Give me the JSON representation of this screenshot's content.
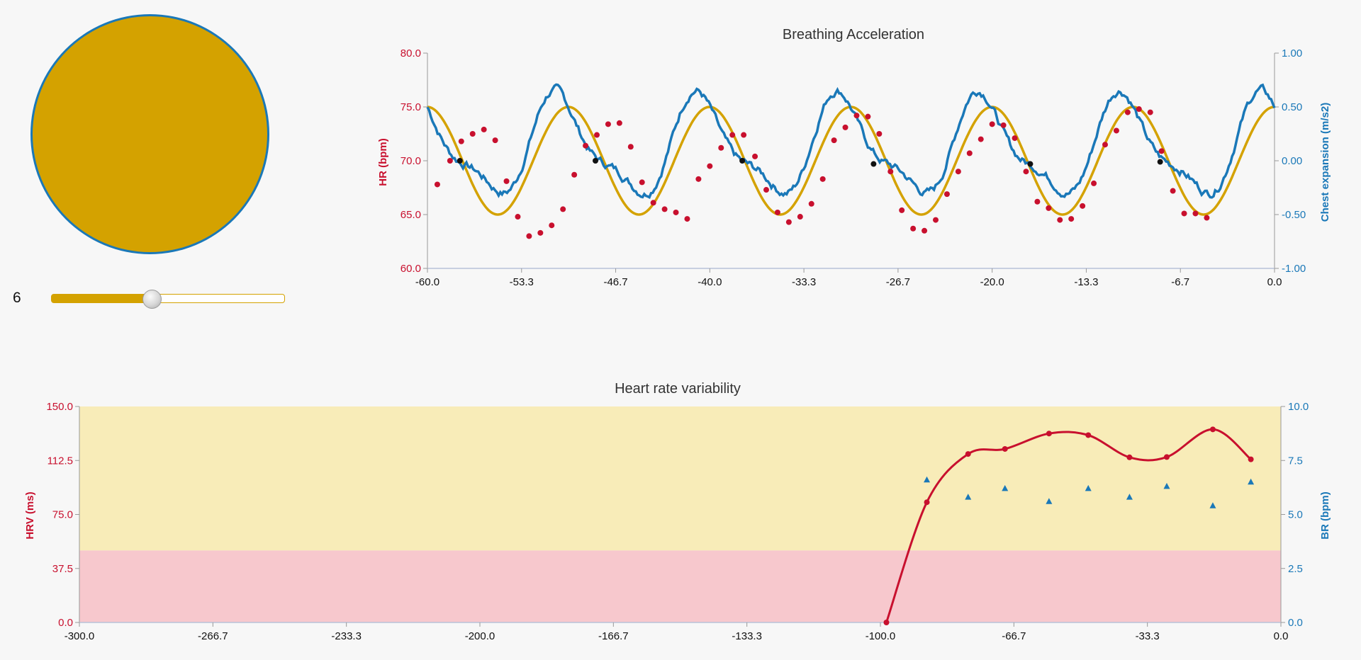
{
  "colors": {
    "gold": "#d4a200",
    "blue": "#1a78b8",
    "red": "#c8102e",
    "black": "#111111",
    "band_yellow": "#f8ecb8",
    "band_pink": "#f7c8cd"
  },
  "pacer": {
    "slider_value": "6",
    "slider_fraction": 0.43
  },
  "chart_data": [
    {
      "type": "line",
      "title": "Breathing Acceleration",
      "ylabel": "HR (bpm)",
      "y2label": "Chest expansion (m/s2)",
      "xlim": [
        -60,
        0
      ],
      "ylim": [
        60,
        80
      ],
      "y2lim": [
        -1,
        1
      ],
      "x_ticks": [
        "-60.0",
        "-53.3",
        "-46.7",
        "-40.0",
        "-33.3",
        "-26.7",
        "-20.0",
        "-13.3",
        "-6.7",
        "0.0"
      ],
      "y_ticks": [
        "60.0",
        "65.0",
        "70.0",
        "75.0",
        "80.0"
      ],
      "y2_ticks": [
        "-1.00",
        "-0.50",
        "0.00",
        "0.50",
        "1.00"
      ],
      "hr_points": [
        [
          -59.3,
          67.8
        ],
        [
          -58.4,
          70.0
        ],
        [
          -57.6,
          71.8
        ],
        [
          -56.8,
          72.5
        ],
        [
          -56.0,
          72.9
        ],
        [
          -55.2,
          71.9
        ],
        [
          -54.4,
          68.1
        ],
        [
          -53.6,
          64.8
        ],
        [
          -52.8,
          63.0
        ],
        [
          -52.0,
          63.3
        ],
        [
          -51.2,
          64.0
        ],
        [
          -50.4,
          65.5
        ],
        [
          -49.6,
          68.7
        ],
        [
          -48.8,
          71.4
        ],
        [
          -48.0,
          72.4
        ],
        [
          -47.2,
          73.4
        ],
        [
          -46.4,
          73.5
        ],
        [
          -45.6,
          71.3
        ],
        [
          -44.8,
          68.0
        ],
        [
          -44.0,
          66.1
        ],
        [
          -43.2,
          65.5
        ],
        [
          -42.4,
          65.2
        ],
        [
          -41.6,
          64.6
        ],
        [
          -40.8,
          68.3
        ],
        [
          -40.0,
          69.5
        ],
        [
          -39.2,
          71.2
        ],
        [
          -38.4,
          72.4
        ],
        [
          -37.6,
          72.4
        ],
        [
          -36.8,
          70.4
        ],
        [
          -36.0,
          67.3
        ],
        [
          -35.2,
          65.2
        ],
        [
          -34.4,
          64.3
        ],
        [
          -33.6,
          64.8
        ],
        [
          -32.8,
          66.0
        ],
        [
          -32.0,
          68.3
        ],
        [
          -31.2,
          71.9
        ],
        [
          -30.4,
          73.1
        ],
        [
          -29.6,
          74.2
        ],
        [
          -28.8,
          74.1
        ],
        [
          -28.0,
          72.5
        ],
        [
          -27.2,
          69.0
        ],
        [
          -26.4,
          65.4
        ],
        [
          -25.6,
          63.7
        ],
        [
          -24.8,
          63.5
        ],
        [
          -24.0,
          64.5
        ],
        [
          -23.2,
          66.9
        ],
        [
          -22.4,
          69.0
        ],
        [
          -21.6,
          70.7
        ],
        [
          -20.8,
          72.0
        ],
        [
          -20.0,
          73.4
        ],
        [
          -19.2,
          73.3
        ],
        [
          -18.4,
          72.1
        ],
        [
          -17.6,
          69.0
        ],
        [
          -16.8,
          66.2
        ],
        [
          -16.0,
          65.6
        ],
        [
          -15.2,
          64.5
        ],
        [
          -14.4,
          64.6
        ],
        [
          -13.6,
          65.8
        ],
        [
          -12.8,
          67.9
        ],
        [
          -12.0,
          71.5
        ],
        [
          -11.2,
          72.8
        ],
        [
          -10.4,
          74.5
        ],
        [
          -9.6,
          74.8
        ],
        [
          -8.8,
          74.5
        ],
        [
          -8.0,
          70.9
        ],
        [
          -7.2,
          67.2
        ],
        [
          -6.4,
          65.1
        ],
        [
          -5.6,
          65.1
        ],
        [
          -4.8,
          64.7
        ]
      ],
      "sync_points": [
        [
          -57.7,
          70.0
        ],
        [
          -48.1,
          70.0
        ],
        [
          -37.7,
          70.0
        ],
        [
          -28.4,
          69.7
        ],
        [
          -17.3,
          69.7
        ],
        [
          -8.1,
          69.9
        ]
      ],
      "series": [
        {
          "name": "paced breathing (HR axis)",
          "period": 10.0,
          "center": 70,
          "amplitude": 5,
          "phase_offset": -0.02
        },
        {
          "name": "chest expansion (right axis)"
        }
      ]
    },
    {
      "type": "line",
      "title": "Heart rate variability",
      "ylabel": "HRV (ms)",
      "y2label": "BR (bpm)",
      "xlim": [
        -300,
        0
      ],
      "ylim": [
        0,
        150
      ],
      "y2lim": [
        0,
        10
      ],
      "x_ticks": [
        "-300.0",
        "-266.7",
        "-233.3",
        "-200.0",
        "-166.7",
        "-133.3",
        "-100.0",
        "-66.7",
        "-33.3",
        "0.0"
      ],
      "y_ticks": [
        "0.0",
        "37.5",
        "75.0",
        "112.5",
        "150.0"
      ],
      "y2_ticks": [
        "0.0",
        "2.5",
        "5.0",
        "7.5",
        "10.0"
      ],
      "bands": [
        {
          "from": 50,
          "to": 150,
          "color": "#f8ecb8"
        },
        {
          "from": 0,
          "to": 50,
          "color": "#f7c8cd"
        }
      ],
      "hrv_points": [
        [
          -98.5,
          0
        ],
        [
          -88.4,
          83.5
        ],
        [
          -78.1,
          117.0
        ],
        [
          -68.9,
          120.5
        ],
        [
          -57.9,
          131.2
        ],
        [
          -48.1,
          130.1
        ],
        [
          -37.8,
          114.7
        ],
        [
          -28.5,
          114.9
        ],
        [
          -17.0,
          134.1
        ],
        [
          -7.5,
          113.3
        ]
      ],
      "br_points": [
        [
          -88.4,
          6.6
        ],
        [
          -78.1,
          5.8
        ],
        [
          -68.9,
          6.2
        ],
        [
          -57.9,
          5.6
        ],
        [
          -48.1,
          6.2
        ],
        [
          -37.8,
          5.8
        ],
        [
          -28.5,
          6.3
        ],
        [
          -17.0,
          5.4
        ],
        [
          -7.5,
          6.5
        ]
      ]
    }
  ]
}
